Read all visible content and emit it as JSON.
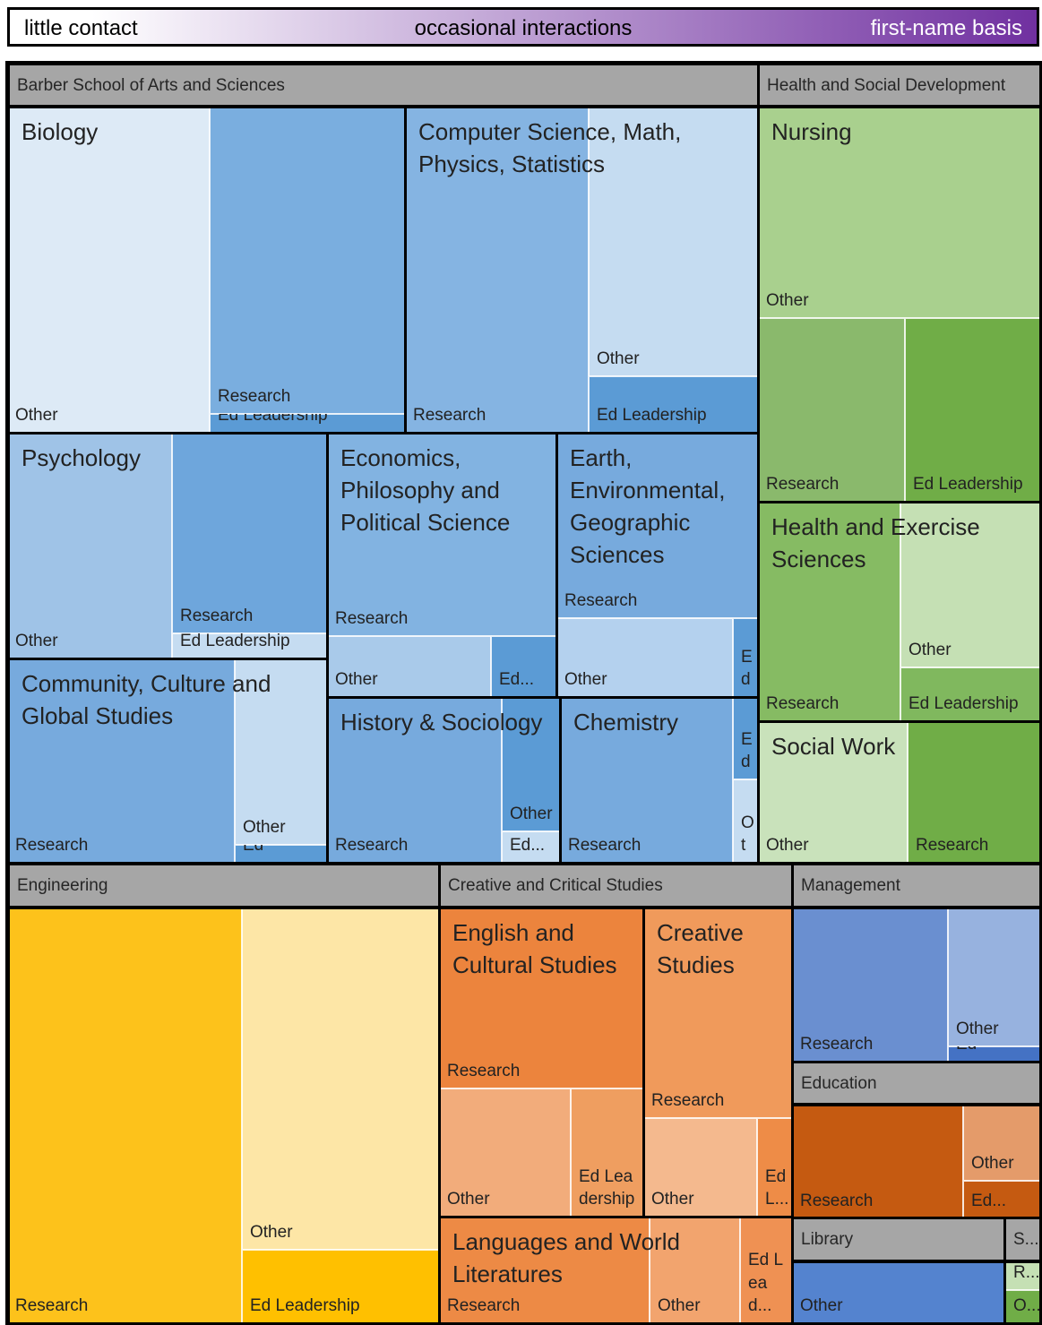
{
  "chart_data": {
    "type": "treemap",
    "legend": {
      "low": "little contact",
      "mid": "occasional interactions",
      "high": "first-name basis",
      "colors": [
        "#ffffff",
        "#7030a0"
      ]
    },
    "groups": [
      {
        "name": "Barber School of Arts and Sciences",
        "departments": [
          {
            "name": "Biology",
            "leaves": [
              {
                "label": "Other",
                "color": "#ddeaf6"
              },
              {
                "label": "Research",
                "color": "#7aaedf"
              },
              {
                "label": "Ed Leadership",
                "color": "#5b9bd5"
              }
            ]
          },
          {
            "name": "Computer Science, Math, Physics, Statistics",
            "leaves": [
              {
                "label": "Research",
                "color": "#85b4e2"
              },
              {
                "label": "Other",
                "color": "#c5dcf1"
              },
              {
                "label": "Ed Leadership",
                "color": "#5b9bd5"
              }
            ]
          },
          {
            "name": "Psychology",
            "leaves": [
              {
                "label": "Other",
                "color": "#9fc3e7"
              },
              {
                "label": "Research",
                "color": "#6ea6dc"
              },
              {
                "label": "Ed Leadership",
                "color": "#c5dcf1"
              }
            ]
          },
          {
            "name": "Economics, Philosophy and Political Science",
            "leaves": [
              {
                "label": "Research",
                "color": "#82b3e1"
              },
              {
                "label": "Other",
                "color": "#a9caea"
              },
              {
                "label": "Ed...",
                "color": "#5b9bd5"
              }
            ]
          },
          {
            "name": "Earth, Environmental, Geographic Sciences",
            "leaves": [
              {
                "label": "Research",
                "color": "#77aadd"
              },
              {
                "label": "Other",
                "color": "#b4d1ee"
              },
              {
                "label": "Ed",
                "color": "#5b9bd5"
              }
            ]
          },
          {
            "name": "Community, Culture and Global Studies",
            "leaves": [
              {
                "label": "Research",
                "color": "#77aadd"
              },
              {
                "label": "Other",
                "color": "#c5dcf1"
              },
              {
                "label": "Ed",
                "color": "#5b9bd5"
              }
            ]
          },
          {
            "name": "History & Sociology",
            "leaves": [
              {
                "label": "Research",
                "color": "#77aadd"
              },
              {
                "label": "Other",
                "color": "#5b9bd5"
              },
              {
                "label": "Ed...",
                "color": "#c5dcf1"
              }
            ]
          },
          {
            "name": "Chemistry",
            "leaves": [
              {
                "label": "Research",
                "color": "#77aadd"
              },
              {
                "label": "Ed",
                "color": "#5b9bd5"
              },
              {
                "label": "Ot",
                "color": "#c5dcf1"
              }
            ]
          }
        ]
      },
      {
        "name": "Health and Social Development",
        "departments": [
          {
            "name": "Nursing",
            "leaves": [
              {
                "label": "Other",
                "color": "#a9d08e"
              },
              {
                "label": "Research",
                "color": "#8ab96c"
              },
              {
                "label": "Ed Leadership",
                "color": "#70ad47"
              }
            ]
          },
          {
            "name": "Health and Exercise Sciences",
            "leaves": [
              {
                "label": "Research",
                "color": "#86bb63"
              },
              {
                "label": "Other",
                "color": "#c5e0b4"
              },
              {
                "label": "Ed Leadership",
                "color": "#80b85e"
              }
            ]
          },
          {
            "name": "Social Work",
            "leaves": [
              {
                "label": "Other",
                "color": "#c9e2bb"
              },
              {
                "label": "Research",
                "color": "#70ad47"
              }
            ]
          }
        ]
      },
      {
        "name": "Engineering",
        "leaves": [
          {
            "label": "Research",
            "color": "#fdc21b"
          },
          {
            "label": "Other",
            "color": "#fde6a6"
          },
          {
            "label": "Ed Leadership",
            "color": "#ffc000"
          }
        ]
      },
      {
        "name": "Creative and Critical Studies",
        "departments": [
          {
            "name": "English and Cultural Studies",
            "leaves": [
              {
                "label": "Research",
                "color": "#ec843d"
              },
              {
                "label": "Other",
                "color": "#f2ac7b"
              },
              {
                "label": "Ed Leadership",
                "color": "#ef9e60"
              }
            ]
          },
          {
            "name": "Creative Studies",
            "leaves": [
              {
                "label": "Research",
                "color": "#f09a5b"
              },
              {
                "label": "Other",
                "color": "#f4b98e"
              },
              {
                "label": "Ed L...",
                "color": "#ee8c47"
              }
            ]
          },
          {
            "name": "Languages and World Literatures",
            "leaves": [
              {
                "label": "Research",
                "color": "#ed8a45"
              },
              {
                "label": "Other",
                "color": "#f2a46e"
              },
              {
                "label": "Ed Lead...",
                "color": "#ef9153"
              }
            ]
          }
        ]
      },
      {
        "name": "Management",
        "leaves": [
          {
            "label": "Research",
            "color": "#6a8fd0"
          },
          {
            "label": "Other",
            "color": "#97b2df"
          },
          {
            "label": "Ed",
            "color": "#4472c4"
          }
        ]
      },
      {
        "name": "Education",
        "leaves": [
          {
            "label": "Research",
            "color": "#c55a11"
          },
          {
            "label": "Other",
            "color": "#e49b6a"
          },
          {
            "label": "Ed...",
            "color": "#c55a11"
          }
        ]
      },
      {
        "name": "Library",
        "leaves": [
          {
            "label": "Other",
            "color": "#5483cf"
          }
        ]
      },
      {
        "name": "S...",
        "leaves": [
          {
            "label": "R...",
            "color": "#c5e0b4"
          },
          {
            "label": "O...",
            "color": "#70ad47"
          }
        ]
      }
    ]
  }
}
